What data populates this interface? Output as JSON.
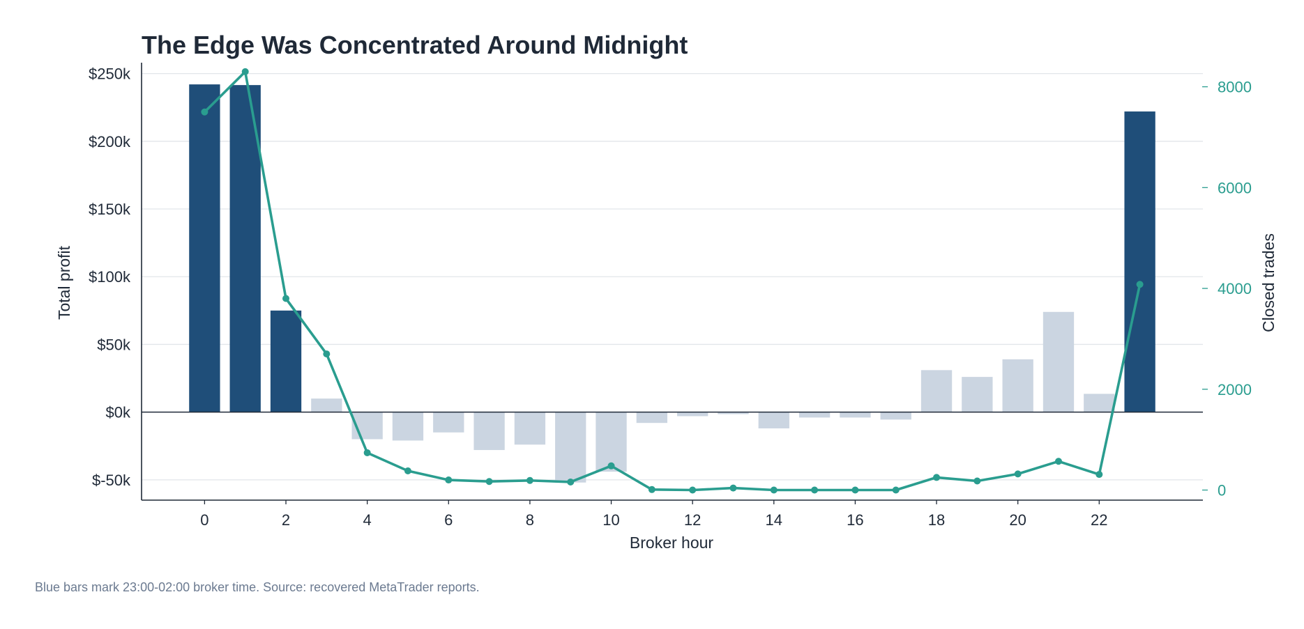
{
  "chart_data": {
    "type": "bar+line",
    "title": "The Edge Was Concentrated Around Midnight",
    "xlabel": "Broker hour",
    "ylabel": "Total profit",
    "y2label": "Closed trades",
    "x": [
      0,
      1,
      2,
      3,
      4,
      5,
      6,
      7,
      8,
      9,
      10,
      11,
      12,
      13,
      14,
      15,
      16,
      17,
      18,
      19,
      20,
      21,
      22,
      23
    ],
    "xticks": [
      0,
      2,
      4,
      6,
      8,
      10,
      12,
      14,
      16,
      18,
      20,
      22
    ],
    "xtick_labels": [
      "0",
      "2",
      "4",
      "6",
      "8",
      "10",
      "12",
      "14",
      "16",
      "18",
      "20",
      "22"
    ],
    "ylim": [
      -65000,
      257000
    ],
    "yticks": [
      -50000,
      0,
      50000,
      100000,
      150000,
      200000,
      250000
    ],
    "ytick_labels": [
      "$-50k",
      "$0k",
      "$50k",
      "$100k",
      "$150k",
      "$200k",
      "$250k"
    ],
    "y2lim": [
      -200,
      8450
    ],
    "y2ticks": [
      0,
      2000,
      4000,
      6000,
      8000
    ],
    "y2tick_labels": [
      "0",
      "2000",
      "4000",
      "6000",
      "8000"
    ],
    "series": [
      {
        "kind": "bar",
        "axis": "left",
        "values": [
          242000,
          241500,
          75000,
          10000,
          -20000,
          -21000,
          -15000,
          -28000,
          -24000,
          -52000,
          -44000,
          -8000,
          -3000,
          -1500,
          -12000,
          -4000,
          -4000,
          -5500,
          31000,
          26000,
          39000,
          74000,
          13500,
          222000
        ],
        "highlight_hours": [
          0,
          1,
          2,
          23
        ]
      },
      {
        "kind": "line",
        "axis": "right",
        "values": [
          7500,
          8300,
          3800,
          2700,
          740,
          380,
          200,
          170,
          190,
          160,
          480,
          10,
          0,
          40,
          0,
          0,
          0,
          0,
          250,
          180,
          320,
          570,
          310,
          4080
        ]
      }
    ],
    "grid": "horizontal",
    "colors": {
      "highlight_bar": "#1f4e79",
      "other_bar": "#cbd5e1",
      "line": "#2a9d8f",
      "grid": "#e2e6ea",
      "axis": "#1f2937",
      "text": "#1f2937"
    }
  },
  "footnote": "Blue bars mark 23:00-02:00 broker time. Source: recovered MetaTrader reports."
}
